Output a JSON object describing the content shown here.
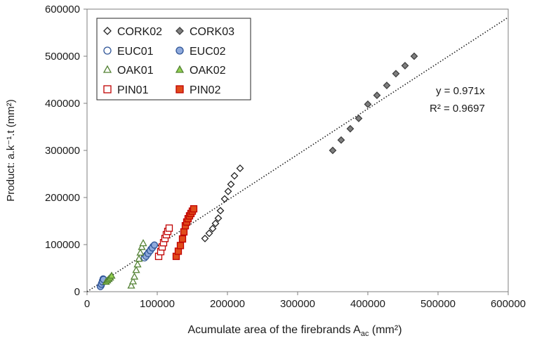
{
  "chart_data": {
    "type": "scatter",
    "xlabel": "Acumulate area of the firebrands A",
    "xlabel_sub": "ac",
    "xlabel_suffix": " (mm²)",
    "ylabel": "Product: a.k⁻¹.t (mm²)",
    "xlim": [
      0,
      600000
    ],
    "ylim": [
      0,
      600000
    ],
    "xticks": [
      0,
      100000,
      200000,
      300000,
      400000,
      500000,
      600000
    ],
    "yticks": [
      0,
      100000,
      200000,
      300000,
      400000,
      500000,
      600000
    ],
    "legend_position": "top-left",
    "series": [
      {
        "name": "CORK02",
        "marker": "diamond",
        "fill": "#ffffff",
        "stroke": "#222222",
        "points": [
          [
            168000,
            113000
          ],
          [
            174000,
            124000
          ],
          [
            179000,
            134000
          ],
          [
            183000,
            145000
          ],
          [
            187000,
            156000
          ],
          [
            190000,
            172000
          ],
          [
            196000,
            197000
          ],
          [
            201000,
            213000
          ],
          [
            205000,
            228000
          ],
          [
            210000,
            246000
          ],
          [
            218000,
            262000
          ]
        ]
      },
      {
        "name": "CORK03",
        "marker": "diamond",
        "fill": "#7f7f7f",
        "stroke": "#404040",
        "points": [
          [
            350000,
            300000
          ],
          [
            362000,
            322000
          ],
          [
            375000,
            346000
          ],
          [
            387000,
            368000
          ],
          [
            400000,
            398000
          ],
          [
            413000,
            417000
          ],
          [
            427000,
            438000
          ],
          [
            440000,
            463000
          ],
          [
            453000,
            480000
          ],
          [
            466000,
            500000
          ]
        ]
      },
      {
        "name": "EUC01",
        "marker": "circle",
        "fill": "#ffffff",
        "stroke": "#2f5597",
        "points": [
          [
            20000,
            13000
          ],
          [
            21000,
            18000
          ],
          [
            22000,
            23000
          ],
          [
            23000,
            27000
          ],
          [
            82000,
            72000
          ],
          [
            85000,
            78000
          ],
          [
            88000,
            84000
          ],
          [
            91000,
            90000
          ],
          [
            94000,
            96000
          ]
        ]
      },
      {
        "name": "EUC02",
        "marker": "circle",
        "fill": "#8faadc",
        "stroke": "#2f5597",
        "points": [
          [
            19000,
            11000
          ],
          [
            20500,
            16000
          ],
          [
            22000,
            21000
          ],
          [
            23500,
            26000
          ],
          [
            84000,
            75000
          ],
          [
            87000,
            81000
          ],
          [
            90000,
            87000
          ],
          [
            93000,
            93000
          ],
          [
            96000,
            99000
          ]
        ]
      },
      {
        "name": "OAK01",
        "marker": "triangle",
        "fill": "#ffffff",
        "stroke": "#548235",
        "points": [
          [
            63000,
            13000
          ],
          [
            65500,
            22000
          ],
          [
            67500,
            32000
          ],
          [
            70000,
            46000
          ],
          [
            72000,
            58000
          ],
          [
            74000,
            70000
          ],
          [
            76000,
            83000
          ],
          [
            78000,
            95000
          ],
          [
            80000,
            103000
          ]
        ]
      },
      {
        "name": "OAK02",
        "marker": "triangle",
        "fill": "#92d050",
        "stroke": "#548235",
        "points": [
          [
            27000,
            21000
          ],
          [
            29000,
            24000
          ],
          [
            31000,
            27000
          ],
          [
            33000,
            30000
          ],
          [
            35000,
            34000
          ]
        ]
      },
      {
        "name": "PIN01",
        "marker": "square",
        "fill": "#ffffff",
        "stroke": "#c00000",
        "points": [
          [
            102000,
            75000
          ],
          [
            105000,
            85000
          ],
          [
            107000,
            95000
          ],
          [
            109000,
            104000
          ],
          [
            111000,
            113000
          ],
          [
            113000,
            121000
          ],
          [
            115000,
            128000
          ],
          [
            117000,
            135000
          ]
        ]
      },
      {
        "name": "PIN02",
        "marker": "square",
        "fill": "#e04b1a",
        "stroke": "#c00000",
        "points": [
          [
            127000,
            75000
          ],
          [
            130000,
            86000
          ],
          [
            133000,
            98000
          ],
          [
            136000,
            112000
          ],
          [
            138000,
            127000
          ],
          [
            140000,
            140000
          ],
          [
            142000,
            148000
          ],
          [
            144000,
            155000
          ],
          [
            146000,
            161000
          ],
          [
            148000,
            166000
          ],
          [
            150000,
            171000
          ],
          [
            152000,
            176000
          ]
        ]
      }
    ],
    "trendline": {
      "slope": 0.971,
      "style": "dotted"
    },
    "annotations": {
      "equation": "y = 0.971x",
      "r_squared": "R² = 0.9697"
    }
  }
}
